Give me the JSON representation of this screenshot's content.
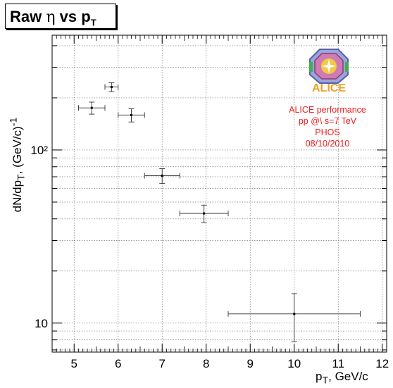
{
  "title": {
    "prefix": "Raw ",
    "eta": "η",
    "mid": " vs p",
    "sub": "T"
  },
  "annotation": {
    "lines": [
      "ALICE performance",
      "pp @\\ s=7 TeV",
      "PHOS",
      "08/10/2010"
    ],
    "logo_text": "ALICE",
    "color": "#ee2020"
  },
  "axes": {
    "ylabel": {
      "pre": "dN/dp",
      "sub": "T",
      "mid": ", (GeV/c)",
      "sup": "-1"
    },
    "xlabel": {
      "pre": "p",
      "sub": "T",
      "post": ", GeV/c"
    }
  },
  "chart_data": {
    "type": "scatter",
    "title": "Raw η vs pT",
    "xlabel": "pT, GeV/c",
    "ylabel": "dN/dpT, (GeV/c)-1",
    "xlim": [
      4.5,
      12.1
    ],
    "ylim": [
      6.8,
      460
    ],
    "y_log": true,
    "grid": true,
    "xticks": [
      5,
      6,
      7,
      8,
      9,
      10,
      11,
      12
    ],
    "ytick_labels": [
      {
        "value": 10,
        "label": "10"
      },
      {
        "value": 100,
        "label": "10²"
      }
    ],
    "points": [
      {
        "x": 5.4,
        "y": 175,
        "xerr": 0.3,
        "yerr": 14
      },
      {
        "x": 5.85,
        "y": 231,
        "xerr": 0.15,
        "yerr": 14
      },
      {
        "x": 6.3,
        "y": 159,
        "xerr": 0.3,
        "yerr": 14
      },
      {
        "x": 7.0,
        "y": 71,
        "xerr": 0.4,
        "yerr": 7
      },
      {
        "x": 7.95,
        "y": 43,
        "xerr": 0.55,
        "yerr": 5
      },
      {
        "x": 10.0,
        "y": 11.3,
        "xerr": 1.5,
        "yerr": 3.5
      }
    ]
  }
}
